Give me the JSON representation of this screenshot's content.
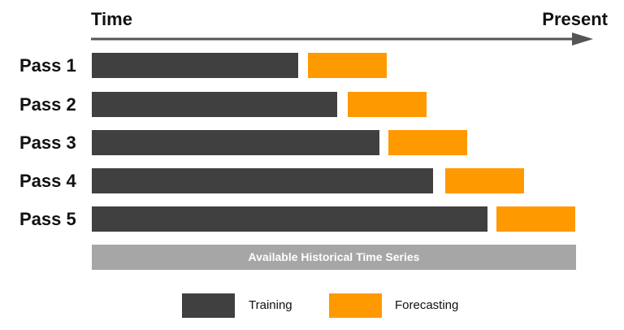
{
  "axis": {
    "start_label": "Time",
    "end_label": "Present"
  },
  "passes": [
    {
      "label": "Pass 1"
    },
    {
      "label": "Pass 2"
    },
    {
      "label": "Pass 3"
    },
    {
      "label": "Pass 4"
    },
    {
      "label": "Pass 5"
    }
  ],
  "history_bar": {
    "label": "Available Historical Time Series"
  },
  "legend": {
    "training_label": "Training",
    "forecasting_label": "Forecasting"
  },
  "colors": {
    "training": "#404040",
    "forecasting": "#ff9900",
    "history": "#a6a6a6",
    "arrow": "#555555"
  }
}
